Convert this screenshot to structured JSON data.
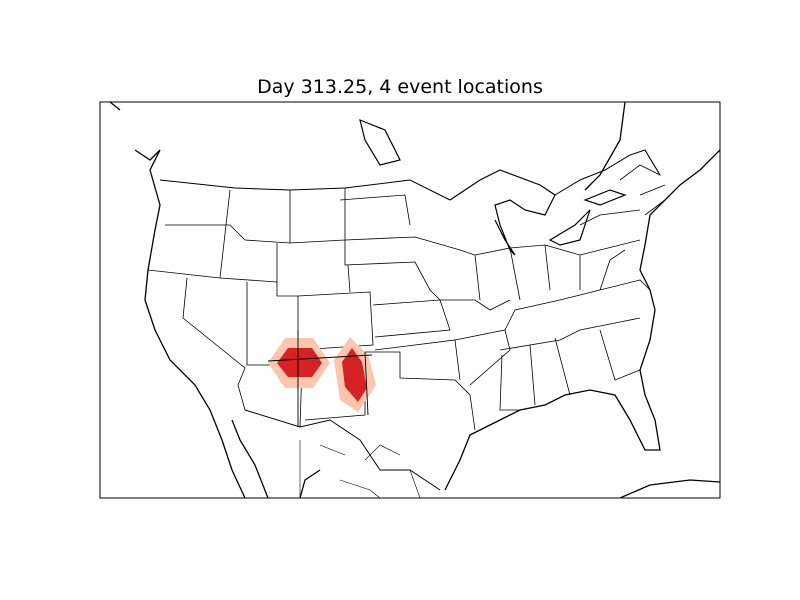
{
  "title": "Day 313.25, 4 event locations",
  "colors": {
    "outer_contour": "#fcc5ad",
    "inner_contour": "#d62222",
    "lines": "#000000",
    "background": "#ffffff"
  },
  "map": {
    "projection": "lambert-conformal",
    "region": "North America (continental US)",
    "features": [
      "coastlines",
      "country borders",
      "state borders"
    ]
  },
  "events": {
    "count": 4
  }
}
